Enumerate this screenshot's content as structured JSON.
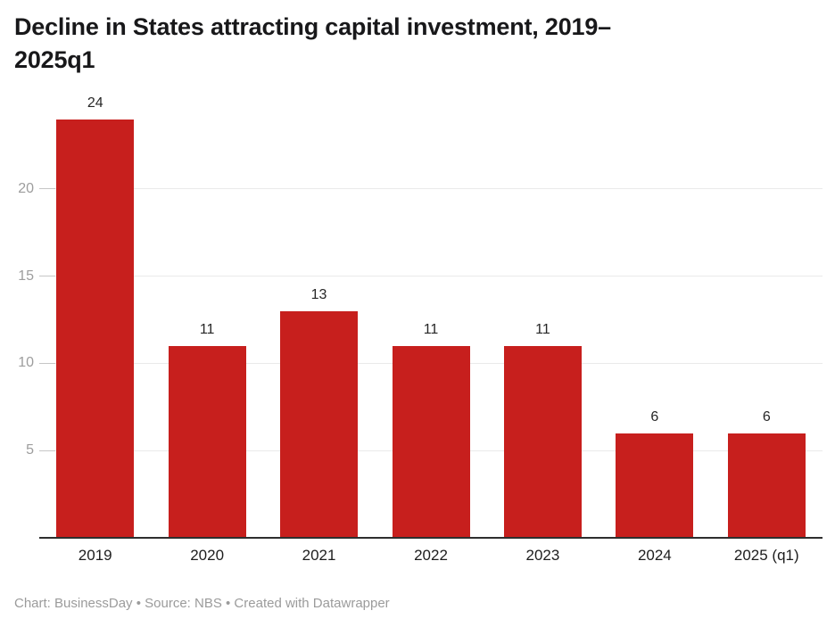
{
  "title": {
    "text": "Decline in States attracting capital investment, 2019–2025q1",
    "lines": [
      "Decline in States attracting capital investment, 2019–",
      "2025q1"
    ]
  },
  "footer": {
    "text": "Chart: BusinessDay • Source: NBS • Created with Datawrapper"
  },
  "chart_data": {
    "type": "bar",
    "title": "Decline in States attracting capital investment, 2019–2025q1",
    "categories": [
      "2019",
      "2020",
      "2021",
      "2022",
      "2023",
      "2024",
      "2025 (q1)"
    ],
    "values": [
      24,
      11,
      13,
      11,
      11,
      6,
      6
    ],
    "xlabel": "",
    "ylabel": "",
    "ylim": [
      0,
      25
    ],
    "yticks": [
      5,
      10,
      15,
      20
    ],
    "grid": true,
    "legend": false,
    "value_labels": true
  },
  "colors": {
    "bar": "#c71f1d",
    "gridline": "#eaeaea",
    "tick": "#c6c6c6",
    "axis_line": "#2e2e2e",
    "y_label": "#9d9d9d",
    "text": "#1d1d1d",
    "footer": "#9b9b9b"
  }
}
